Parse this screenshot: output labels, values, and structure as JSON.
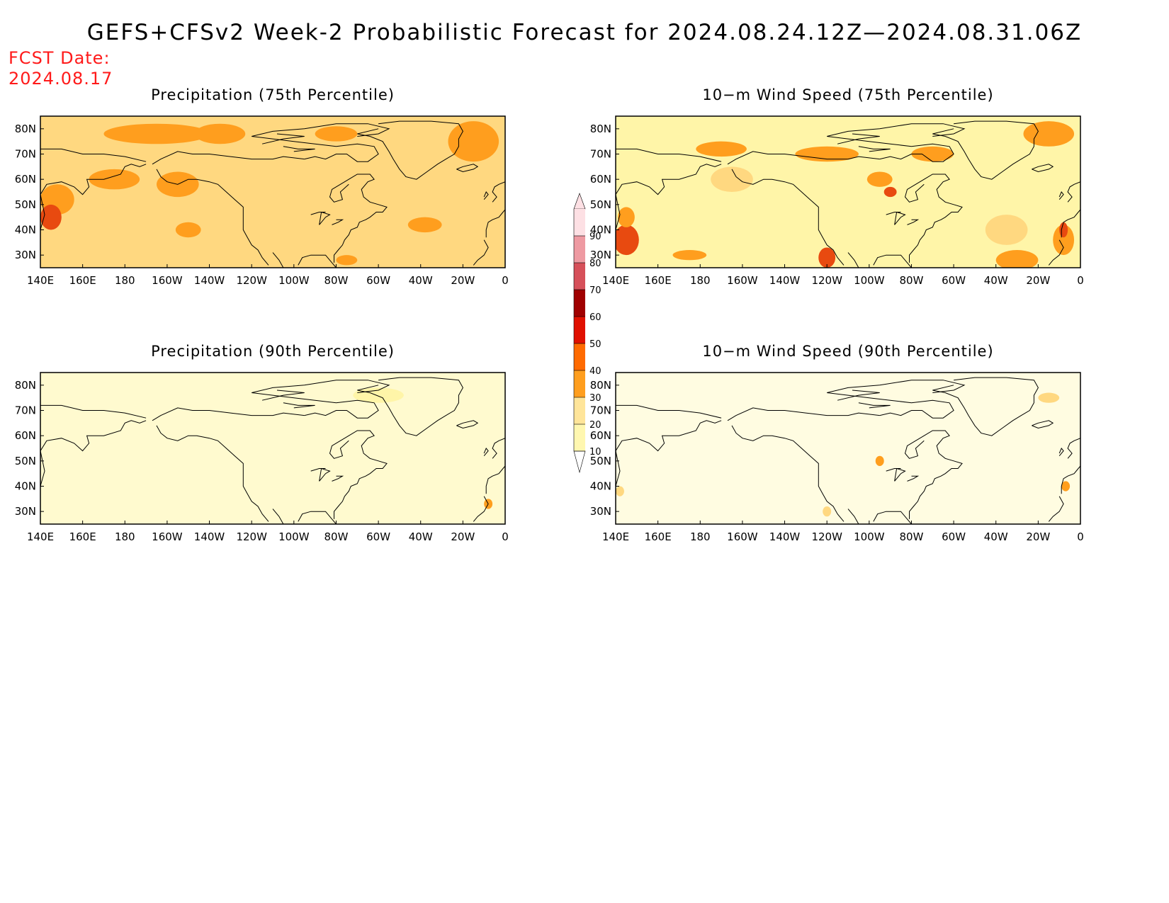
{
  "title": "GEFS+CFSv2 Week-2 Probabilistic Forecast for 2024.08.24.12Z—2024.08.31.06Z",
  "fcst_date": {
    "label": "FCST Date:",
    "value": "2024.08.17"
  },
  "panels": [
    {
      "title": "Precipitation (75th Percentile)"
    },
    {
      "title": "10−m Wind Speed (75th Percentile)"
    },
    {
      "title": "Precipitation (90th Percentile)"
    },
    {
      "title": "10−m Wind Speed (90th Percentile)"
    }
  ],
  "map_axes": {
    "lon_labels": [
      "140E",
      "160E",
      "180",
      "160W",
      "140W",
      "120W",
      "100W",
      "80W",
      "60W",
      "40W",
      "20W",
      "0"
    ],
    "lat_labels": [
      "80N",
      "70N",
      "60N",
      "50N",
      "40N",
      "30N"
    ]
  },
  "colorbar": {
    "levels": [
      "10",
      "20",
      "30",
      "40",
      "50",
      "60",
      "70",
      "80",
      "90"
    ],
    "colors": [
      "#fff7b0",
      "#ffe59a",
      "#ff9e1e",
      "#ff6a00",
      "#e01000",
      "#a00000",
      "#d6505a",
      "#ee9aa2",
      "#fde0e4"
    ]
  },
  "colors": {
    "title": "#000000",
    "fcst_date": "#ff1a1a",
    "land_outline": "#000000",
    "low_fill": "#fff5a8",
    "mid_fill": "#ffd880",
    "high_fill": "#ff9e1e",
    "peak_fill": "#e84a10"
  }
}
